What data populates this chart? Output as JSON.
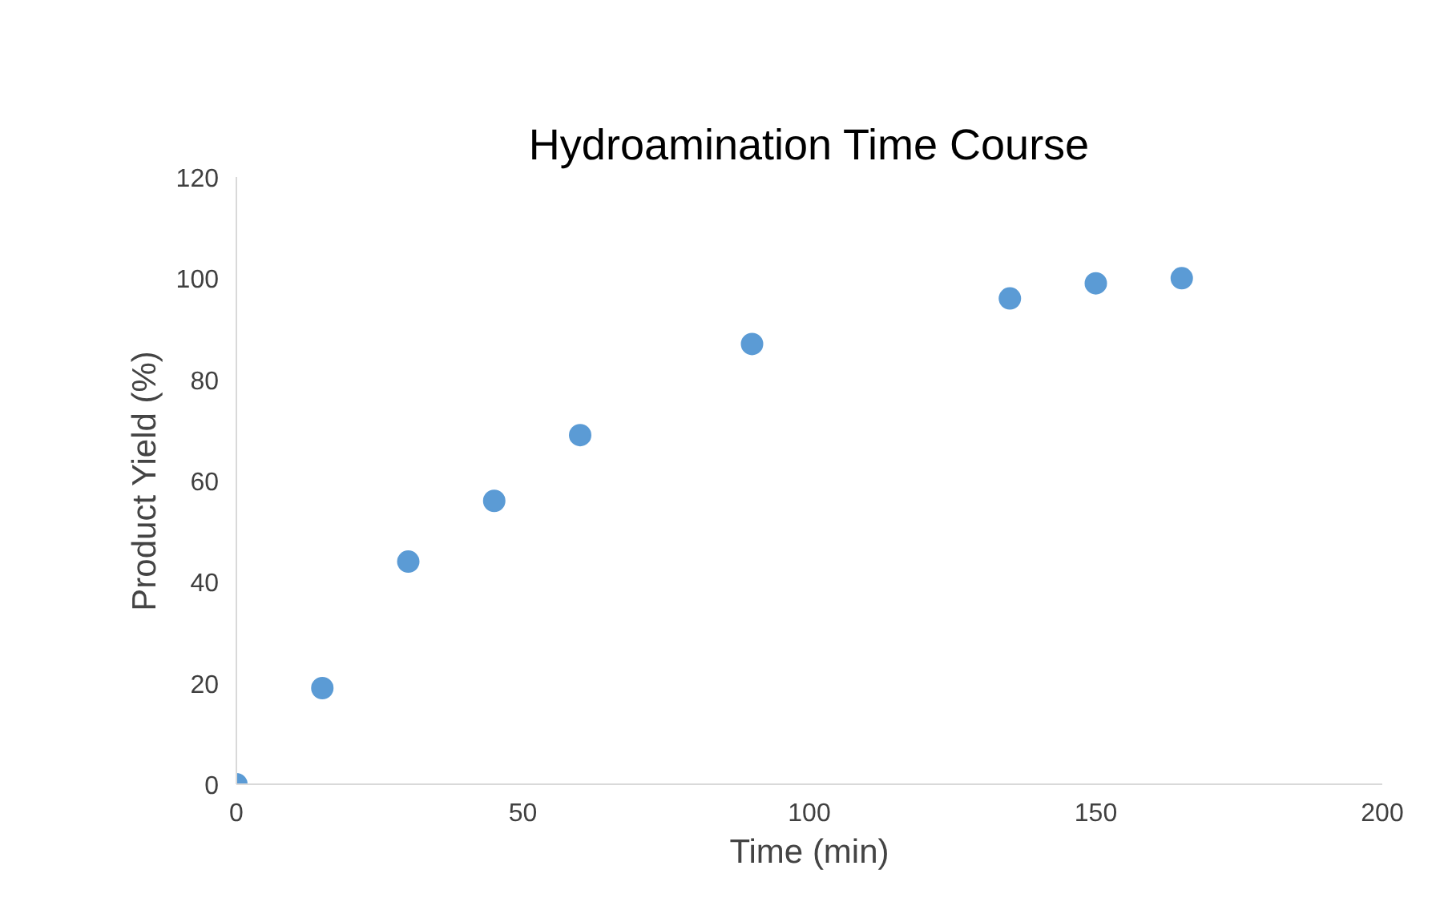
{
  "chart_data": {
    "type": "scatter",
    "title": "Hydroamination Time Course",
    "xlabel": "Time (min)",
    "ylabel": "Product Yield (%)",
    "x": [
      0,
      15,
      30,
      45,
      60,
      90,
      135,
      150,
      165
    ],
    "series": [
      {
        "color": "#5b9bd5",
        "values": [
          0,
          19,
          44,
          56,
          69,
          87,
          96,
          99,
          100
        ]
      }
    ],
    "xlim": [
      0,
      200
    ],
    "xticks": [
      0,
      50,
      100,
      150,
      200
    ],
    "ylim": [
      0,
      120
    ],
    "yticks": [
      0,
      20,
      40,
      60,
      80,
      100,
      120
    ],
    "grid": false,
    "marker": "circle"
  }
}
